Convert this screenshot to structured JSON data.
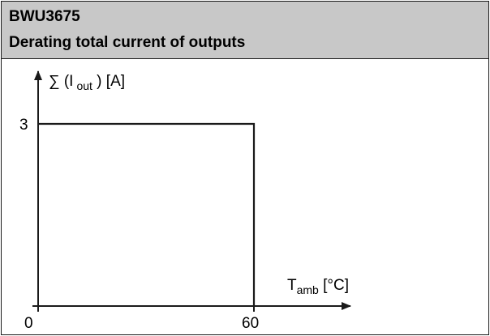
{
  "header": {
    "model": "BWU3675",
    "title": "Derating total current of outputs"
  },
  "chart_data": {
    "type": "line",
    "title": "Derating total current of outputs",
    "xlabel": "T_amb [°C]",
    "ylabel": "Σ (I_out) [A]",
    "xlim": [
      0,
      70
    ],
    "ylim": [
      0,
      3.6
    ],
    "x_ticks": [
      0,
      60
    ],
    "y_ticks": [
      3
    ],
    "grid": false,
    "series": [
      {
        "values": [
          [
            0,
            3
          ],
          [
            60,
            3
          ],
          [
            60,
            0
          ]
        ]
      }
    ]
  },
  "axis_labels": {
    "y_prefix": "∑ (I",
    "y_sub": "out",
    "y_suffix": " ) [A]",
    "x_main": "T",
    "x_sub": "amb",
    "x_suffix": " [°C]"
  },
  "ticks": {
    "x0": "0",
    "x60": "60",
    "y3": "3"
  },
  "colors": {
    "header_bg": "#c8c8c8",
    "line": "#1a1a1a"
  }
}
